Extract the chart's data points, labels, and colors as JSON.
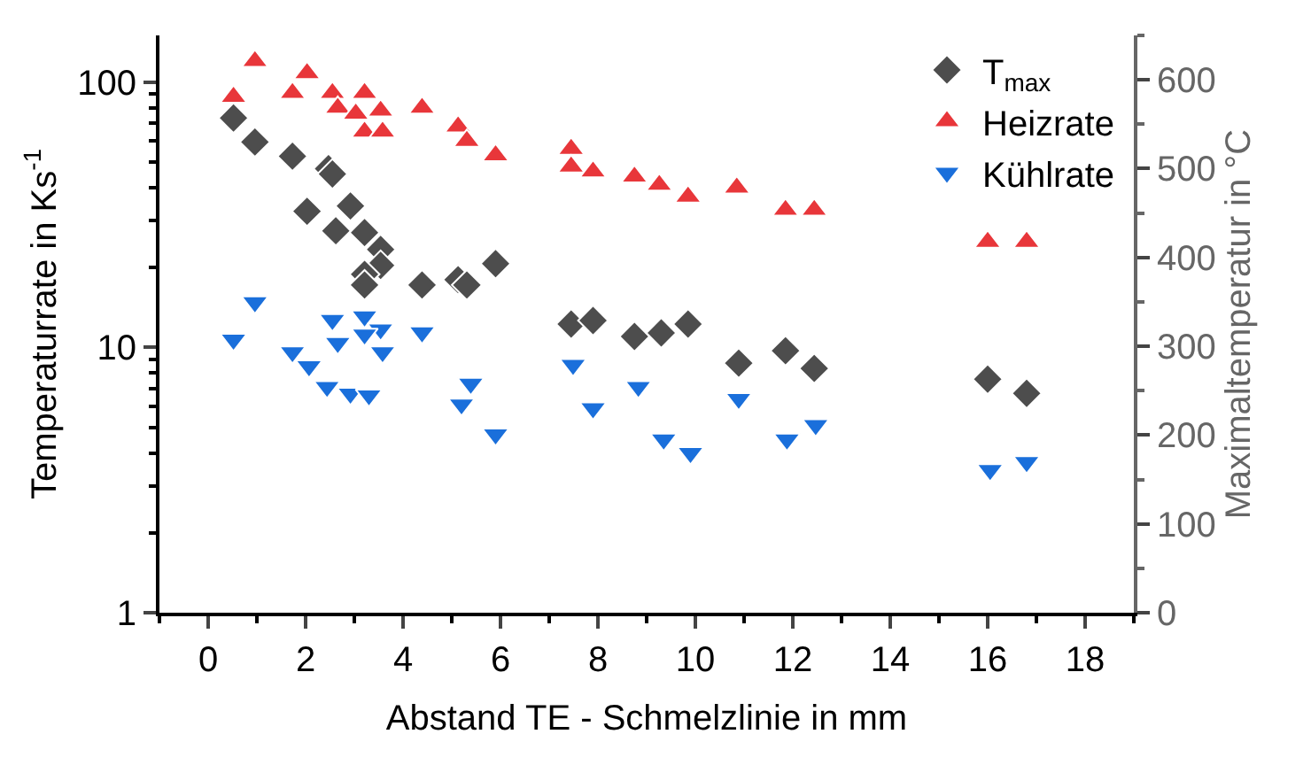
{
  "chart_data": {
    "type": "scatter",
    "xlabel": "Abstand TE - Schmelzlinie in mm",
    "ylabel": "Temperaturrate in Ks$^{-1}$",
    "y2label": "Maximaltemperatur in °C",
    "xlim": [
      -1,
      19
    ],
    "xticks": [
      0,
      2,
      4,
      6,
      8,
      10,
      12,
      14,
      16,
      18
    ],
    "ylim": [
      1,
      150
    ],
    "yticks": [
      1,
      10,
      100
    ],
    "log": "y",
    "y2lim": [
      0,
      650
    ],
    "y2ticks": [
      0,
      100,
      200,
      300,
      400,
      500,
      600
    ],
    "legend": "top right",
    "series": [
      {
        "name": "T$_{max}$",
        "color": "#4d4d4d",
        "marker": "diamond",
        "axis": "y2",
        "x": [
          0.52,
          0.96,
          1.73,
          2.47,
          2.55,
          2.03,
          2.92,
          2.62,
          3.21,
          3.54,
          3.54,
          3.21,
          3.21,
          4.39,
          5.13,
          5.31,
          5.9,
          7.45,
          7.9,
          8.75,
          9.3,
          9.85,
          10.89,
          11.85,
          12.44,
          16.0,
          16.8
        ],
        "values": [
          557,
          530,
          514,
          500,
          494,
          452,
          458,
          430,
          428,
          409,
          391,
          381,
          369,
          369,
          375,
          369,
          393,
          325,
          329,
          311,
          315,
          325,
          281,
          295,
          275,
          263,
          247
        ]
      },
      {
        "name": "Heizrate",
        "color": "#e8363a",
        "marker": "triangle",
        "x": [
          0.96,
          0.52,
          2.03,
          1.73,
          2.55,
          3.21,
          2.66,
          3.03,
          3.54,
          3.21,
          3.58,
          4.39,
          5.13,
          5.31,
          5.9,
          7.45,
          7.45,
          7.9,
          8.75,
          9.26,
          9.85,
          10.85,
          11.85,
          12.44,
          16.0,
          16.8
        ],
        "values": [
          120,
          88,
          108,
          91,
          91,
          91,
          80,
          76,
          78,
          65,
          65,
          80,
          68,
          60,
          53,
          56,
          48,
          46,
          44,
          41,
          37,
          40,
          33,
          33,
          25,
          25
        ]
      },
      {
        "name": "Kühlrate",
        "color": "#1a6fdb",
        "marker": "triangle-down",
        "x": [
          0.96,
          0.52,
          2.55,
          3.21,
          3.54,
          3.21,
          2.66,
          3.58,
          4.39,
          1.73,
          2.07,
          2.44,
          2.92,
          3.3,
          5.39,
          5.2,
          5.9,
          7.49,
          7.9,
          8.83,
          9.35,
          9.9,
          10.89,
          11.88,
          12.47,
          16.05,
          16.8
        ],
        "values": [
          14.8,
          10.7,
          12.7,
          13.1,
          11.7,
          11.2,
          10.4,
          9.6,
          11.4,
          9.6,
          8.5,
          7.1,
          6.7,
          6.6,
          7.3,
          6.1,
          4.7,
          8.6,
          5.9,
          7.1,
          4.5,
          4.0,
          6.4,
          4.5,
          5.1,
          3.45,
          3.7
        ]
      }
    ]
  }
}
